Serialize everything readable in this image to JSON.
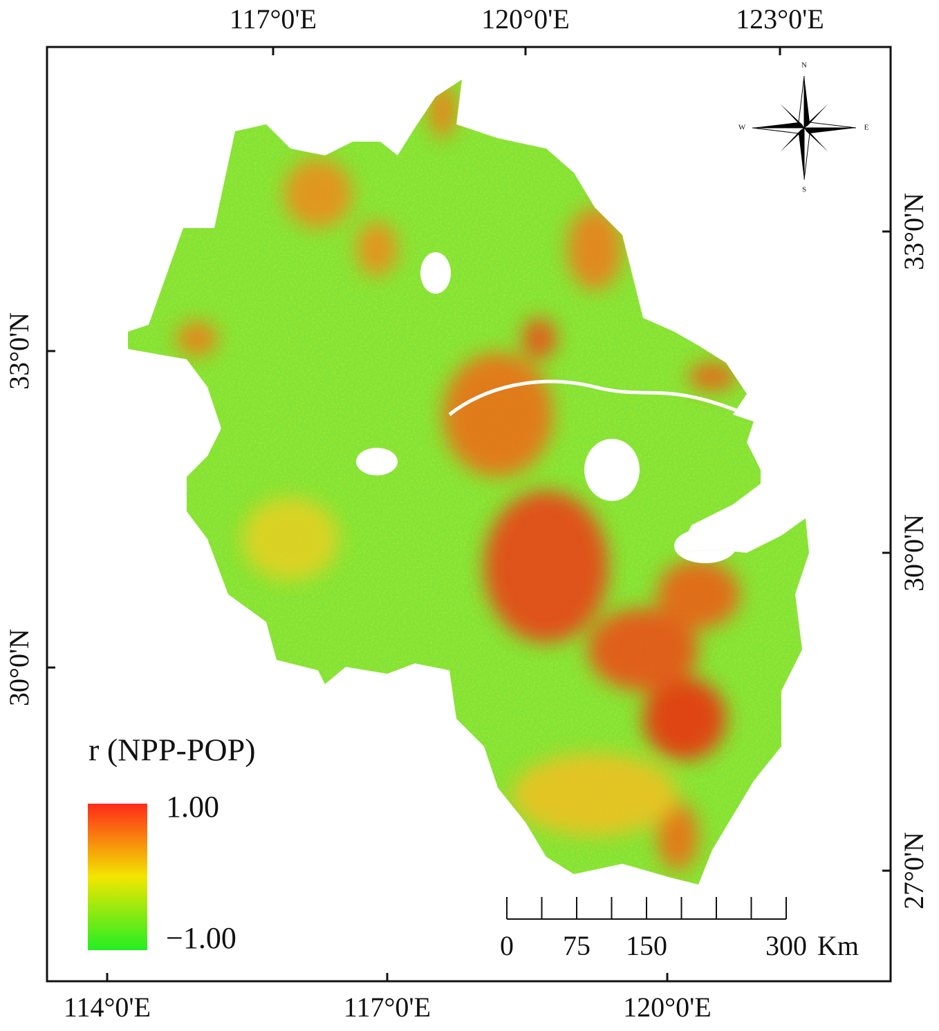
{
  "map": {
    "graticule": {
      "top": [
        "117°0'E",
        "120°0'E",
        "123°0'E"
      ],
      "bottom": [
        "114°0'E",
        "117°0'E",
        "120°0'E"
      ],
      "left": [
        "33°0'N",
        "30°0'N"
      ],
      "right": [
        "33°0'N",
        "30°0'N",
        "27°0'N"
      ]
    },
    "legend": {
      "title": "r (NPP-POP)",
      "max_label": "1.00",
      "min_label": "−1.00"
    },
    "scale_bar": {
      "labels": [
        "0",
        "75",
        "150",
        "300"
      ],
      "unit": "Km"
    },
    "compass": {
      "north": "N",
      "south": "S",
      "east": "E",
      "west": "W"
    }
  }
}
